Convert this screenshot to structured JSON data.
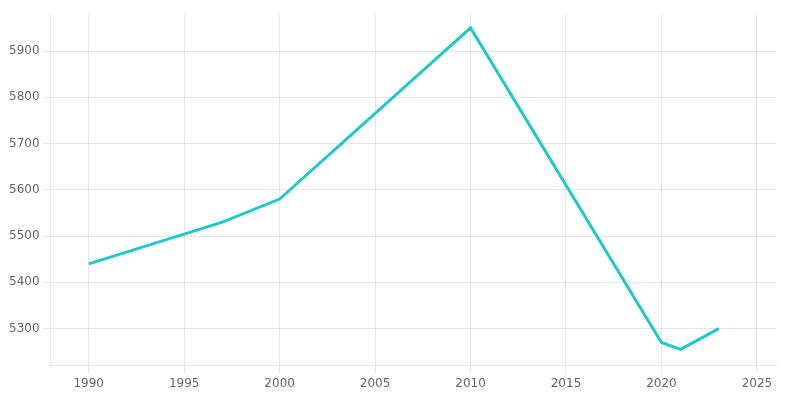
{
  "chart_data": {
    "type": "line",
    "x": [
      1990,
      1997,
      2000,
      2010,
      2020,
      2021,
      2023
    ],
    "values": [
      5440,
      5530,
      5580,
      5950,
      5270,
      5255,
      5300
    ],
    "color": "#20C8C8",
    "xlim": [
      1988,
      2026
    ],
    "ylim": [
      5220,
      5980
    ],
    "xticks": [
      1990,
      1995,
      2000,
      2005,
      2010,
      2015,
      2020,
      2025
    ],
    "yticks": [
      5300,
      5400,
      5500,
      5600,
      5700,
      5800,
      5900
    ],
    "grid": true
  }
}
